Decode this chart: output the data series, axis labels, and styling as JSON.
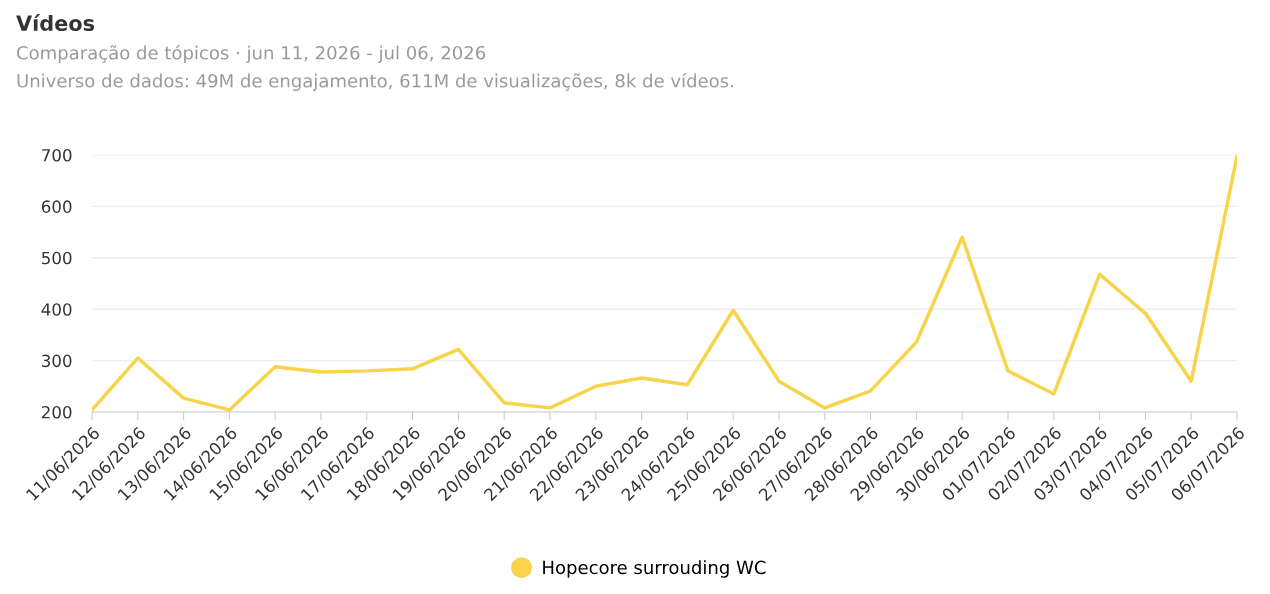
{
  "chart_data": {
    "type": "line",
    "title": "Vídeos",
    "subtitle": "Comparação de tópicos · jun 11, 2026 - jul 06, 2026",
    "annotations": [
      "Universo de dados: 49M de engajamento, 611M de visualizações, 8k de vídeos."
    ],
    "categories": [
      "11/06/2026",
      "12/06/2026",
      "13/06/2026",
      "14/06/2026",
      "15/06/2026",
      "16/06/2026",
      "17/06/2026",
      "18/06/2026",
      "19/06/2026",
      "20/06/2026",
      "21/06/2026",
      "22/06/2026",
      "23/06/2026",
      "24/06/2026",
      "25/06/2026",
      "26/06/2026",
      "27/06/2026",
      "28/06/2026",
      "29/06/2026",
      "30/06/2026",
      "01/07/2026",
      "02/07/2026",
      "03/07/2026",
      "04/07/2026",
      "05/07/2026",
      "06/07/2026"
    ],
    "series": [
      {
        "name": "Hopecore surrouding WC",
        "color": "#f7d44a",
        "values": [
          204,
          305,
          227,
          204,
          288,
          278,
          280,
          284,
          322,
          218,
          208,
          250,
          266,
          253,
          398,
          260,
          208,
          241,
          336,
          540,
          280,
          235,
          468,
          392,
          260,
          698
        ]
      }
    ],
    "ylim": [
      200,
      700
    ],
    "yticks": [
      200,
      300,
      400,
      500,
      600,
      700
    ],
    "grid": "y",
    "legend": "bottom"
  }
}
